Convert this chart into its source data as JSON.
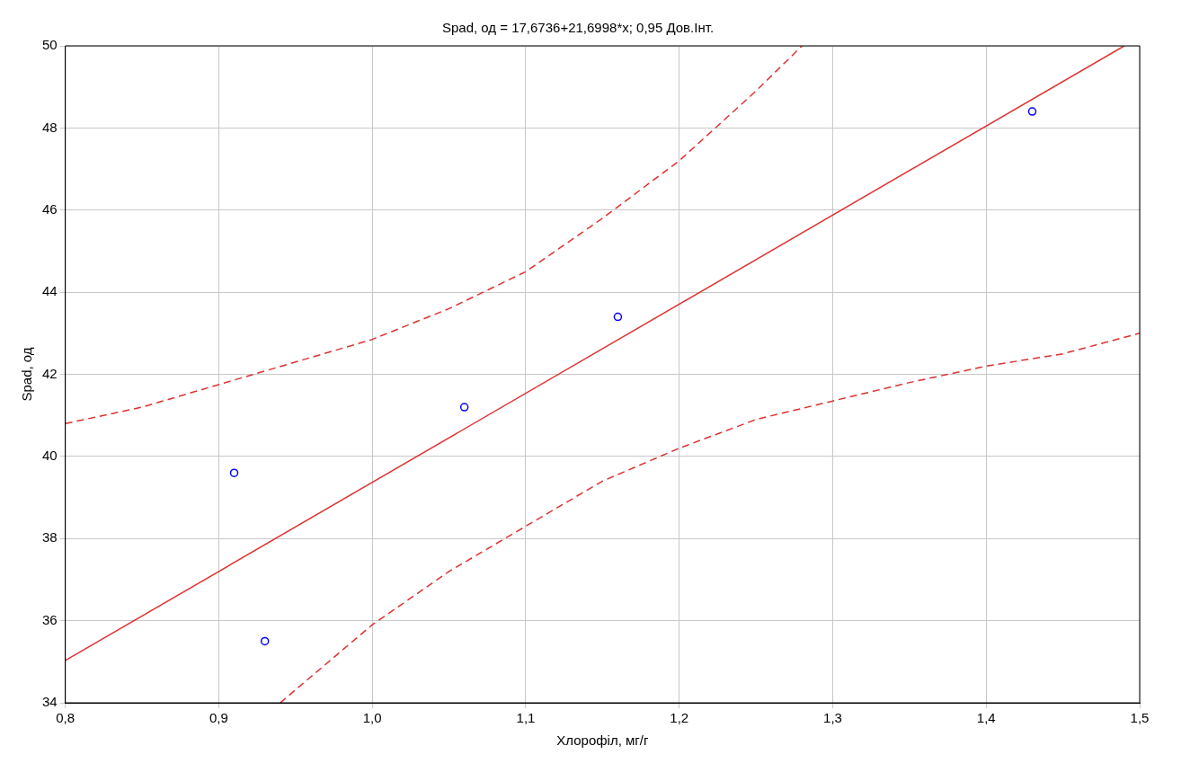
{
  "chart_data": {
    "type": "scatter",
    "title": "Spad, од = 17,6736+21,6998*x; 0,95 Дов.Інт.",
    "xlabel": "Хлорофіл, мг/г",
    "ylabel": "Spad, од",
    "xlim": [
      0.8,
      1.5
    ],
    "xticks": [
      {
        "value": 0.8,
        "label": "0,8"
      },
      {
        "value": 0.9,
        "label": "0,9"
      },
      {
        "value": 1.0,
        "label": "1,0"
      },
      {
        "value": 1.1,
        "label": "1,1"
      },
      {
        "value": 1.2,
        "label": "1,2"
      },
      {
        "value": 1.3,
        "label": "1,3"
      },
      {
        "value": 1.4,
        "label": "1,4"
      },
      {
        "value": 1.5,
        "label": "1,5"
      }
    ],
    "ylim": [
      34,
      50
    ],
    "yticks": [
      34,
      36,
      38,
      40,
      42,
      44,
      46,
      48,
      50
    ],
    "grid": true,
    "legend": false,
    "series": [
      {
        "type": "scatter",
        "color": "#0000ff",
        "marker": "circle",
        "x": [
          0.91,
          0.93,
          1.06,
          1.16,
          1.43
        ],
        "values": [
          39.6,
          35.5,
          41.2,
          43.4,
          48.4
        ]
      },
      {
        "type": "line",
        "color": "#e03030",
        "marker": "none",
        "line_style": "solid",
        "x": [
          0.8,
          1.49
        ],
        "values": [
          35.03,
          50.0
        ]
      },
      {
        "type": "line",
        "color": "#e03030",
        "marker": "none",
        "line_style": "dashed",
        "x": [
          0.8,
          0.85,
          0.9,
          0.95,
          1.0,
          1.05,
          1.1,
          1.15,
          1.2,
          1.25,
          1.28
        ],
        "values": [
          40.8,
          41.2,
          41.75,
          42.3,
          42.85,
          43.6,
          44.5,
          45.8,
          47.2,
          48.9,
          50.0
        ]
      },
      {
        "type": "line",
        "color": "#e03030",
        "marker": "none",
        "line_style": "dashed",
        "x": [
          0.94,
          1.0,
          1.05,
          1.1,
          1.15,
          1.2,
          1.25,
          1.3,
          1.35,
          1.4,
          1.45,
          1.5
        ],
        "values": [
          34.0,
          35.9,
          37.2,
          38.3,
          39.4,
          40.2,
          40.9,
          41.35,
          41.8,
          42.2,
          42.5,
          43.0
        ]
      }
    ]
  }
}
